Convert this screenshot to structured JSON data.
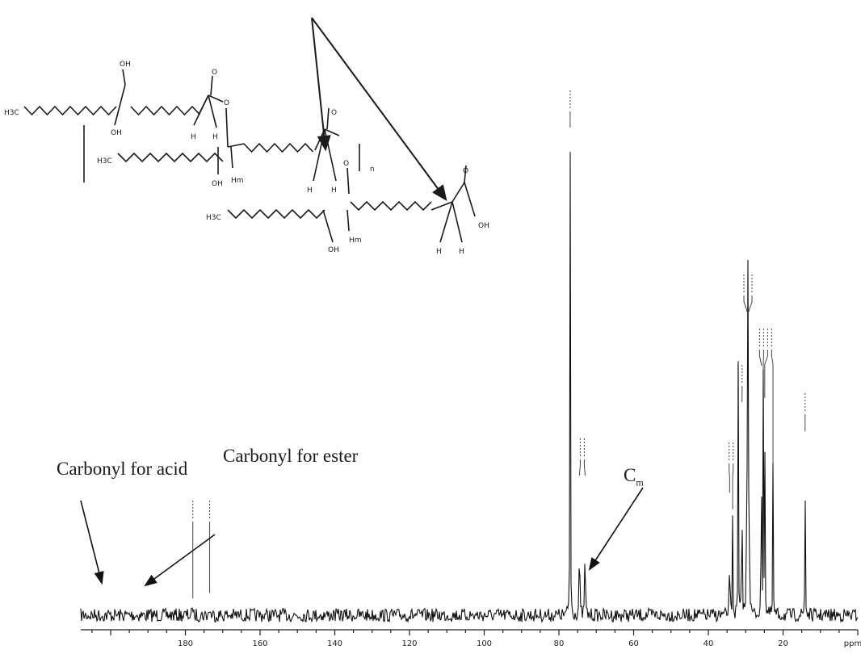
{
  "chart_data": {
    "type": "line",
    "title": "",
    "xlabel": "",
    "ylabel": "",
    "x_unit": "ppm",
    "xlim": [
      208,
      0
    ],
    "x_reversed": true,
    "ticks": [
      180,
      160,
      140,
      120,
      100,
      80,
      60,
      40,
      20,
      0
    ],
    "tick_labels": [
      "180",
      "160",
      "140",
      "120",
      "100",
      "80",
      "60",
      "40",
      "20",
      "ppm"
    ],
    "series": [
      {
        "peaks": [
          {
            "ppm": 178.0,
            "height": 0.03
          },
          {
            "ppm": 173.5,
            "height": 0.04
          },
          {
            "ppm": 77.0,
            "height": 1.0
          },
          {
            "ppm": 74.5,
            "height": 0.3
          },
          {
            "ppm": 73.0,
            "height": 0.27
          },
          {
            "ppm": 34.3,
            "height": 0.22
          },
          {
            "ppm": 33.5,
            "height": 0.19
          },
          {
            "ppm": 32.0,
            "height": 0.45
          },
          {
            "ppm": 31.0,
            "height": 0.42
          },
          {
            "ppm": 29.7,
            "height": 0.62
          },
          {
            "ppm": 29.4,
            "height": 0.6
          },
          {
            "ppm": 29.1,
            "height": 0.56
          },
          {
            "ppm": 25.8,
            "height": 0.47
          },
          {
            "ppm": 25.3,
            "height": 0.43
          },
          {
            "ppm": 24.9,
            "height": 0.39
          },
          {
            "ppm": 22.7,
            "height": 0.27
          },
          {
            "ppm": 14.1,
            "height": 0.33
          }
        ]
      }
    ],
    "annotations": [
      {
        "text": "Carbonyl for acid",
        "target_ppm": 180.0
      },
      {
        "text": "Carbonyl for ester",
        "target_ppm": 174.0
      },
      {
        "text": "C",
        "subscript": "m",
        "target_ppm": 72.5
      }
    ]
  },
  "structure": {
    "atom_labels": [
      "OH",
      "OH",
      "O",
      "O",
      "H",
      "H",
      "Hm",
      "OH",
      "O",
      "O",
      "n",
      "H",
      "H",
      "Hm",
      "OH",
      "O",
      "OH",
      "H",
      "H",
      "OH"
    ],
    "methyl_labels": [
      "H3C",
      "H3C",
      "H3C"
    ]
  }
}
